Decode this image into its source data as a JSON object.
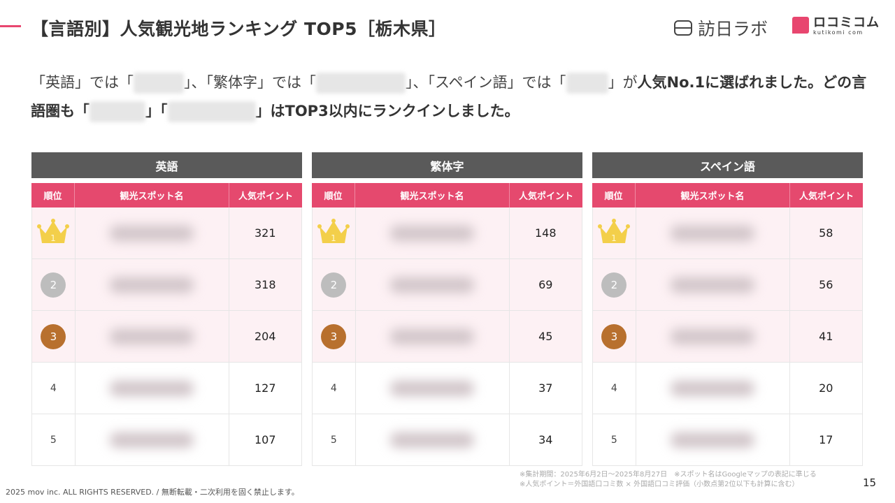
{
  "header": {
    "title": "【言語別】人気観光地ランキング TOP5［栃木県］",
    "logo_hoonichi": "訪日ラボ",
    "logo_kutikomi": "ロコミコム",
    "logo_kutikomi_sub": "kutikomi com"
  },
  "lead": {
    "p1": "「英語」では「",
    "p2": "」、「繁体字」では「",
    "p3": "」、「スペイン語」では「",
    "p4": "」が",
    "p5": "人気No.1に選ばれました。",
    "p6": "どの言語圏も「",
    "p7": "」「",
    "p8": "」",
    "p9": "はTOP3以内にランクインしました。"
  },
  "colors": {
    "accent": "#e5496e",
    "caption_bg": "#5a5a5a",
    "top_row_bg": "#fdf1f4",
    "gold": "#f3cf4a",
    "silver": "#bdbdbd",
    "bronze": "#b8702e"
  },
  "columns": {
    "rank": "順位",
    "spot": "観光スポット名",
    "points": "人気ポイント"
  },
  "tables": [
    {
      "language": "英語",
      "rows": [
        {
          "rank": "1",
          "points": "321"
        },
        {
          "rank": "2",
          "points": "318"
        },
        {
          "rank": "3",
          "points": "204"
        },
        {
          "rank": "4",
          "points": "127"
        },
        {
          "rank": "5",
          "points": "107"
        }
      ]
    },
    {
      "language": "繁体字",
      "rows": [
        {
          "rank": "1",
          "points": "148"
        },
        {
          "rank": "2",
          "points": "69"
        },
        {
          "rank": "3",
          "points": "45"
        },
        {
          "rank": "4",
          "points": "37"
        },
        {
          "rank": "5",
          "points": "34"
        }
      ]
    },
    {
      "language": "スペイン語",
      "rows": [
        {
          "rank": "1",
          "points": "58"
        },
        {
          "rank": "2",
          "points": "56"
        },
        {
          "rank": "3",
          "points": "41"
        },
        {
          "rank": "4",
          "points": "20"
        },
        {
          "rank": "5",
          "points": "17"
        }
      ]
    }
  ],
  "footer": {
    "copyright": "2025 mov inc. ALL RIGHTS RESERVED. / 無断転載・二次利用を固く禁止します。",
    "note1": "※集計期間：2025年6月2日〜2025年8月27日　※スポット名はGoogleマップの表記に準じる",
    "note2": "※人気ポイント＝外国語口コミ数 × 外国語口コミ評価（小数点第2位以下も計算に含む）",
    "page": "15"
  }
}
